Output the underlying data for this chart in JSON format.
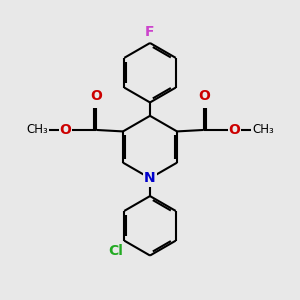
{
  "background_color": "#e8e8e8",
  "bond_color": "#000000",
  "bond_width": 1.5,
  "atom_colors": {
    "C": "#000000",
    "N": "#0000cc",
    "O": "#cc0000",
    "F": "#cc44cc",
    "Cl": "#22aa22"
  },
  "font_size_atom": 10,
  "font_size_small": 8.5,
  "xlim": [
    0,
    10
  ],
  "ylim": [
    0,
    10
  ]
}
